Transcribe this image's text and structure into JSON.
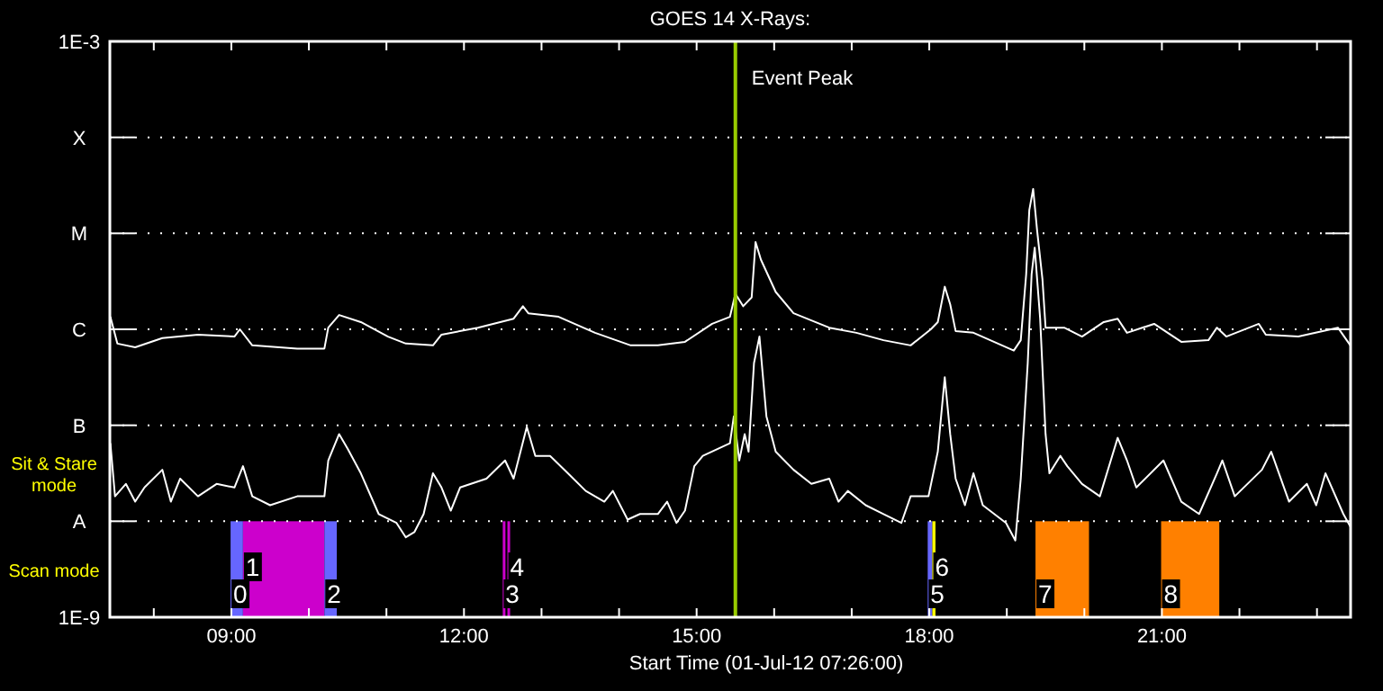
{
  "chart_data": {
    "type": "line",
    "title": "GOES 14 X-Rays:",
    "xlabel": "Start Time (01-Jul-12 07:26:00)",
    "log": "y",
    "grid": "y",
    "xlim": [
      7.4333,
      23.4333
    ],
    "xticks": [
      {
        "value": 8,
        "label": null
      },
      {
        "value": 9,
        "label": "09:00"
      },
      {
        "value": 10,
        "label": null
      },
      {
        "value": 11,
        "label": null
      },
      {
        "value": 12,
        "label": "12:00"
      },
      {
        "value": 13,
        "label": null
      },
      {
        "value": 14,
        "label": null
      },
      {
        "value": 15,
        "label": "15:00"
      },
      {
        "value": 16,
        "label": null
      },
      {
        "value": 17,
        "label": null
      },
      {
        "value": 18,
        "label": "18:00"
      },
      {
        "value": 19,
        "label": null
      },
      {
        "value": 20,
        "label": null
      },
      {
        "value": 21,
        "label": "21:00"
      },
      {
        "value": 22,
        "label": null
      },
      {
        "value": 23,
        "label": null
      }
    ],
    "ylim": [
      1e-09,
      0.001
    ],
    "yticks": [
      {
        "value": 1e-09,
        "label": "1E-9"
      },
      {
        "value": 1e-08,
        "label": "A"
      },
      {
        "value": 1e-07,
        "label": "B"
      },
      {
        "value": 1e-06,
        "label": "C"
      },
      {
        "value": 1e-05,
        "label": "M"
      },
      {
        "value": 0.0001,
        "label": "X"
      },
      {
        "value": 0.001,
        "label": "1E-3"
      }
    ],
    "series": [
      {
        "color": "#ffffff",
        "x": [
          7.44,
          7.53,
          7.76,
          8.11,
          8.57,
          9.04,
          9.11,
          9.27,
          9.85,
          10.2,
          10.25,
          10.39,
          10.67,
          11.02,
          11.25,
          11.6,
          11.71,
          12.18,
          12.64,
          12.76,
          12.83,
          13.22,
          13.69,
          14.15,
          14.5,
          14.85,
          15.2,
          15.43,
          15.5,
          15.6,
          15.71,
          15.76,
          15.83,
          16.02,
          16.25,
          16.71,
          17.06,
          17.41,
          17.76,
          18.02,
          18.11,
          18.2,
          18.27,
          18.34,
          18.57,
          19.09,
          19.18,
          19.25,
          19.29,
          19.34,
          19.39,
          19.46,
          19.5,
          19.74,
          19.97,
          20.25,
          20.43,
          20.55,
          20.9,
          21.25,
          21.6,
          21.71,
          21.83,
          22.25,
          22.34,
          22.76,
          23.27,
          23.43
        ],
        "values": [
          1.35e-06,
          7.1e-07,
          6.5e-07,
          8.1e-07,
          8.8e-07,
          8.4e-07,
          1e-06,
          6.8e-07,
          6.3e-07,
          6.3e-07,
          1.04e-06,
          1.41e-06,
          1.19e-06,
          8.4e-07,
          7.1e-07,
          6.8e-07,
          8.8e-07,
          1.04e-06,
          1.29e-06,
          1.74e-06,
          1.47e-06,
          1.35e-06,
          9.2e-07,
          6.8e-07,
          6.8e-07,
          7.4e-07,
          1.14e-06,
          1.35e-06,
          2.35e-06,
          1.74e-06,
          2.15e-06,
          8.1e-06,
          5.3e-06,
          2.45e-06,
          1.47e-06,
          1.04e-06,
          9.2e-07,
          7.7e-07,
          6.8e-07,
          1e-06,
          1.19e-06,
          2.78e-06,
          1.82e-06,
          9.6e-07,
          9.2e-07,
          6e-07,
          7.7e-07,
          3.75e-06,
          1.74e-05,
          2.9e-05,
          1.09e-05,
          3.3e-06,
          1.04e-06,
          1.04e-06,
          8.4e-07,
          1.19e-06,
          1.29e-06,
          9.2e-07,
          1.14e-06,
          7.4e-07,
          7.7e-07,
          1.04e-06,
          8.4e-07,
          1.14e-06,
          8.8e-07,
          8.4e-07,
          1.04e-06,
          6.8e-07
        ]
      },
      {
        "color": "#ffffff",
        "x": [
          7.44,
          7.5,
          7.64,
          7.76,
          7.88,
          8.11,
          8.22,
          8.34,
          8.57,
          8.81,
          9.04,
          9.15,
          9.27,
          9.5,
          9.85,
          10.2,
          10.25,
          10.39,
          10.5,
          10.67,
          10.9,
          11.13,
          11.25,
          11.36,
          11.48,
          11.6,
          11.71,
          11.83,
          11.95,
          12.29,
          12.53,
          12.64,
          12.81,
          12.92,
          13.11,
          13.34,
          13.57,
          13.81,
          13.92,
          14.11,
          14.27,
          14.5,
          14.62,
          14.74,
          14.85,
          14.97,
          15.08,
          15.43,
          15.48,
          15.55,
          15.62,
          15.67,
          15.74,
          15.81,
          15.9,
          16.02,
          16.25,
          16.48,
          16.71,
          16.83,
          16.95,
          17.18,
          17.41,
          17.64,
          17.76,
          17.99,
          18.11,
          18.2,
          18.27,
          18.34,
          18.46,
          18.57,
          18.69,
          18.99,
          19.11,
          19.18,
          19.27,
          19.32,
          19.36,
          19.43,
          19.5,
          19.55,
          19.69,
          19.78,
          19.97,
          20.2,
          20.43,
          20.55,
          20.67,
          21.02,
          21.25,
          21.48,
          21.71,
          21.78,
          21.94,
          22.29,
          22.41,
          22.64,
          22.87,
          22.99,
          23.11,
          23.34,
          23.43
        ],
        "values": [
          6.5e-08,
          1.82e-08,
          2.45e-08,
          1.6e-08,
          2.25e-08,
          3.44e-08,
          1.6e-08,
          2.78e-08,
          1.82e-08,
          2.45e-08,
          2.25e-08,
          3.75e-08,
          1.82e-08,
          1.47e-08,
          1.82e-08,
          1.82e-08,
          4.3e-08,
          8.1e-08,
          5.7e-08,
          3.16e-08,
          1.19e-08,
          9.6e-09,
          6.8e-09,
          7.7e-09,
          1.19e-08,
          3.16e-08,
          2.25e-08,
          1.29e-08,
          2.25e-08,
          2.78e-08,
          4.3e-08,
          2.78e-08,
          9.6e-08,
          4.8e-08,
          4.8e-08,
          3.16e-08,
          2.07e-08,
          1.6e-08,
          2.07e-08,
          1.04e-08,
          1.19e-08,
          1.19e-08,
          1.6e-08,
          9.6e-09,
          1.29e-08,
          3.75e-08,
          4.8e-08,
          6.5e-08,
          1.24e-07,
          4.3e-08,
          8.1e-08,
          5.3e-08,
          4.45e-07,
          8.4e-07,
          1.24e-07,
          5.3e-08,
          3.44e-08,
          2.45e-08,
          2.78e-08,
          1.6e-08,
          2.07e-08,
          1.47e-08,
          1.19e-08,
          9.6e-09,
          1.82e-08,
          1.82e-08,
          5.3e-08,
          3.16e-07,
          8.1e-08,
          2.78e-08,
          1.47e-08,
          3.16e-08,
          1.47e-08,
          9.6e-09,
          6.3e-09,
          2.78e-08,
          4.45e-07,
          3.75e-06,
          7.1e-06,
          1.29e-06,
          8.1e-08,
          3.16e-08,
          4.8e-08,
          3.75e-08,
          2.45e-08,
          1.82e-08,
          7.4e-08,
          4.3e-08,
          2.25e-08,
          4.3e-08,
          1.6e-08,
          1.19e-08,
          3.16e-08,
          4.3e-08,
          1.82e-08,
          3.44e-08,
          5.3e-08,
          1.6e-08,
          2.45e-08,
          1.47e-08,
          3.16e-08,
          1.19e-08,
          8.8e-09
        ]
      }
    ],
    "ref_lines": [
      {
        "axis": "x",
        "value": 15.5,
        "label": "Event Peak",
        "color": "#99cc00"
      }
    ],
    "bands": [
      {
        "axis": "x",
        "from": 8.99,
        "to": 9.15,
        "label": "0",
        "color": "#6666ff"
      },
      {
        "axis": "x",
        "from": 9.15,
        "to": 10.2,
        "label": "1",
        "color": "#cc00cc"
      },
      {
        "axis": "x",
        "from": 10.2,
        "to": 10.36,
        "label": "2",
        "color": "#6666ff"
      },
      {
        "axis": "x",
        "from": 12.5,
        "to": 12.53,
        "label": "3",
        "color": "#cc00cc"
      },
      {
        "axis": "x",
        "from": 12.56,
        "to": 12.59,
        "label": "4",
        "color": "#cc00cc"
      },
      {
        "axis": "x",
        "from": 17.98,
        "to": 18.04,
        "label": "5",
        "color": "#6666ff"
      },
      {
        "axis": "x",
        "from": 18.04,
        "to": 18.08,
        "label": "6",
        "color": "#ffff00"
      },
      {
        "axis": "x",
        "from": 19.37,
        "to": 20.06,
        "label": "7",
        "color": "#ff8000"
      },
      {
        "axis": "x",
        "from": 20.99,
        "to": 21.74,
        "label": "8",
        "color": "#ff8000"
      }
    ],
    "annotations": [
      "Sit & Stare mode",
      "Scan mode"
    ]
  }
}
